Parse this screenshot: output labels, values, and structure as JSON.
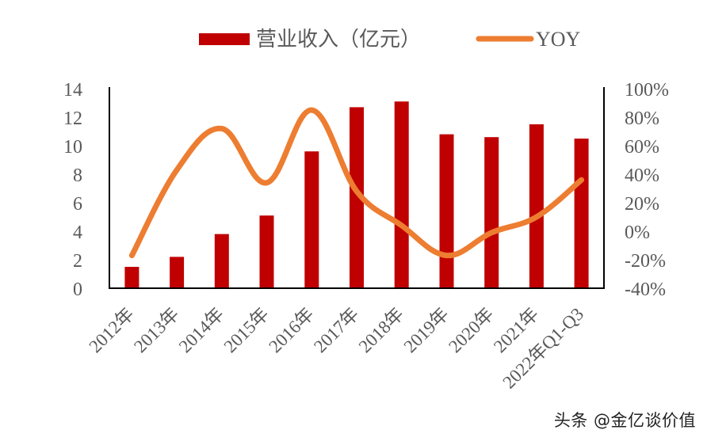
{
  "colors": {
    "bar": "#C00000",
    "line": "#ED7D31",
    "axis": "#000000",
    "text": "#595959"
  },
  "legend": {
    "bar_label": "营业收入（亿元）",
    "line_label": "YOY"
  },
  "watermark": "头条 @金亿谈价值",
  "chart_data": {
    "type": "bar+line",
    "title": "",
    "categories": [
      "2012年",
      "2013年",
      "2014年",
      "2015年",
      "2016年",
      "2017年",
      "2018年",
      "2019年",
      "2020年",
      "2021年",
      "2022年Q1-Q3"
    ],
    "series": [
      {
        "name": "营业收入（亿元）",
        "type": "bar",
        "axis": "left",
        "values": [
          1.5,
          2.2,
          3.8,
          5.1,
          9.6,
          12.7,
          13.1,
          10.8,
          10.6,
          11.5,
          10.5
        ]
      },
      {
        "name": "YOY",
        "type": "line",
        "axis": "right",
        "unit": "%",
        "values": [
          -17,
          43,
          72,
          34,
          85,
          28,
          4,
          -17,
          -1,
          10,
          36
        ]
      }
    ],
    "left_axis": {
      "ylim": [
        0,
        14
      ],
      "ticks": [
        "0",
        "2",
        "4",
        "6",
        "8",
        "10",
        "12",
        "14"
      ]
    },
    "right_axis": {
      "ylim": [
        -40,
        100
      ],
      "ticks": [
        "-40%",
        "-20%",
        "0%",
        "20%",
        "40%",
        "60%",
        "80%",
        "100%"
      ]
    },
    "grid": false,
    "legend_position": "top"
  }
}
